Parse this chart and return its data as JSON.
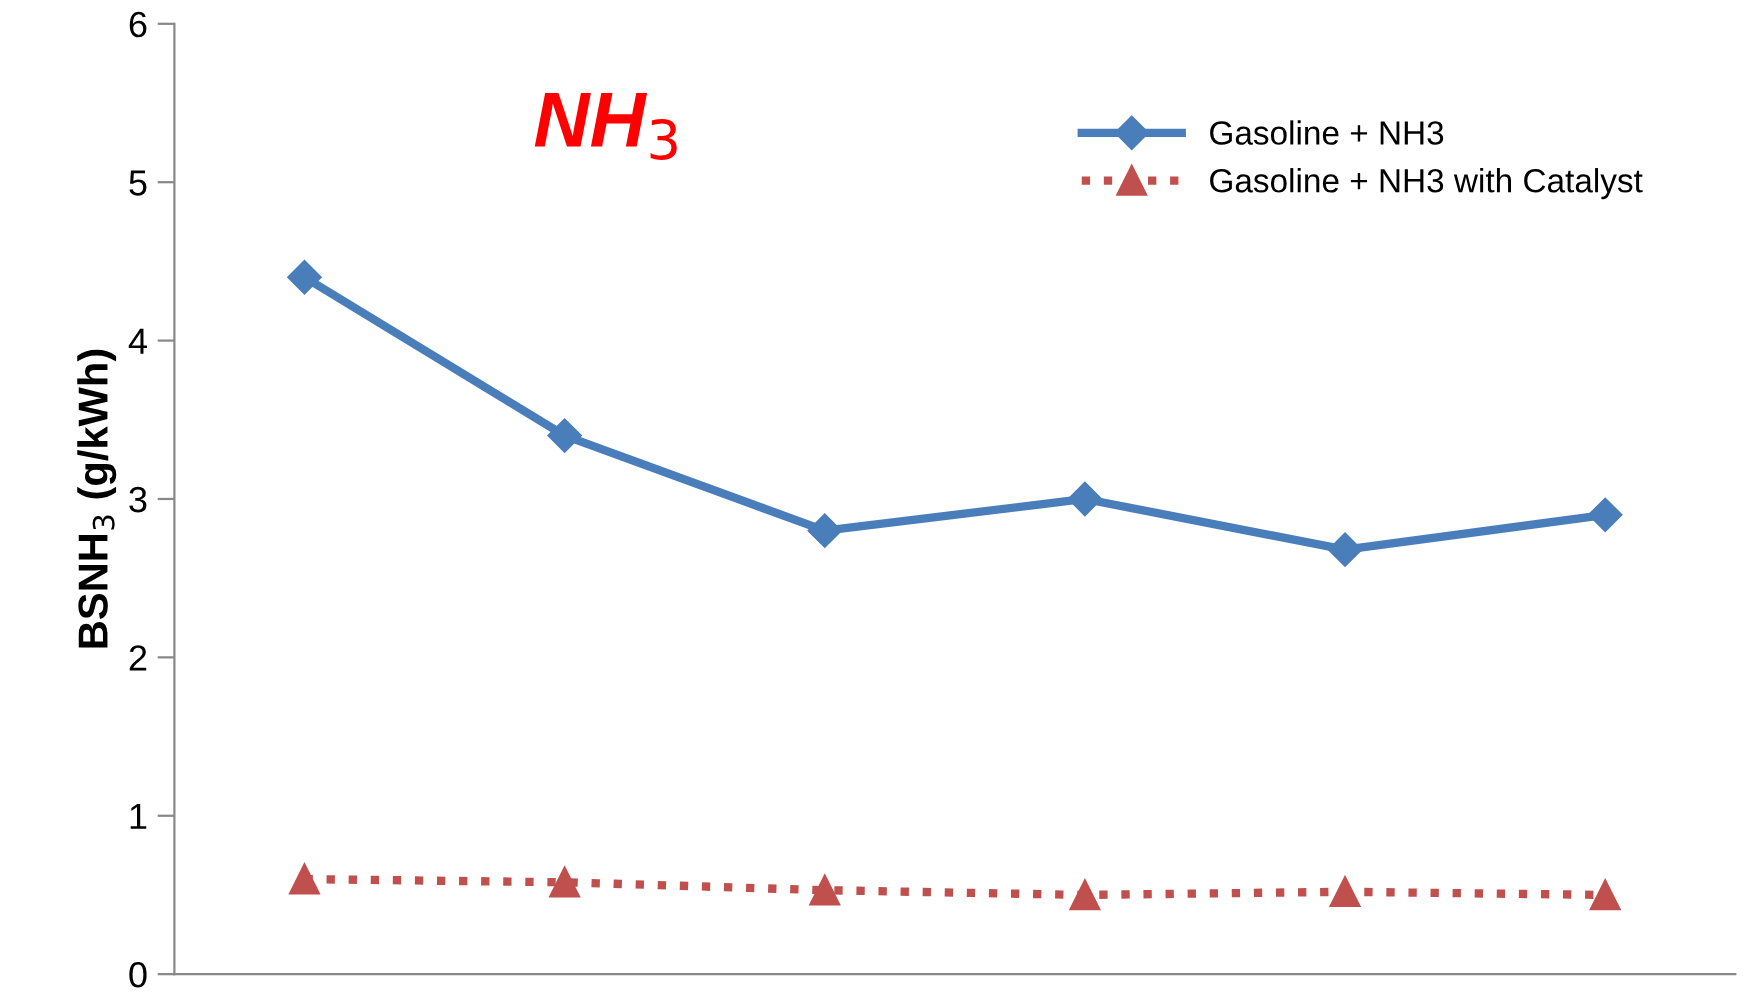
{
  "chart_data": {
    "type": "line",
    "title": "NH$_{3}$",
    "ylabel": "BSNH$_{3}$ (g/kWh)",
    "categories": [
      null,
      null,
      null,
      null,
      null,
      null
    ],
    "ylim": [
      0,
      6
    ],
    "yticks": [
      0,
      1,
      2,
      3,
      4,
      5,
      6
    ],
    "grid": false,
    "legend": "top right",
    "series": [
      {
        "name": "Gasoline + NH3",
        "color": "#4a7ebb",
        "marker": "diamond",
        "line_style": "solid",
        "values": [
          4.4,
          3.4,
          2.8,
          3.0,
          2.68,
          2.9
        ]
      },
      {
        "name": "Gasoline + NH3 with Catalyst",
        "color": "#c0504d",
        "marker": "triangle",
        "line_style": "dotted",
        "values": [
          0.6,
          0.58,
          0.53,
          0.5,
          0.52,
          0.5
        ]
      }
    ]
  }
}
